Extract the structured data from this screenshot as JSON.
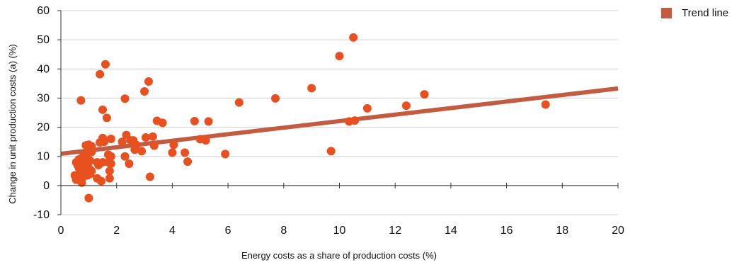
{
  "chart_data": {
    "type": "scatter",
    "title": "",
    "xlabel": "Energy costs as a share of production costs (%)",
    "ylabel": "Change in unit production costs (a) (%)",
    "xlim": [
      0,
      20
    ],
    "ylim": [
      -10,
      60
    ],
    "xticks": [
      0,
      2,
      4,
      6,
      8,
      10,
      12,
      14,
      16,
      18,
      20
    ],
    "yticks": [
      -10,
      0,
      10,
      20,
      30,
      40,
      50,
      60
    ],
    "grid": "horizontal",
    "legend_position": "top-right",
    "colors": {
      "points": "#e8501f",
      "trend": "#c25b3f",
      "grid": "#d0d0d0",
      "axis": "#333333"
    },
    "trend_line": {
      "name": "Trend line",
      "x": [
        0,
        20
      ],
      "y": [
        10.9,
        33.3
      ]
    },
    "points": [
      [
        0.5,
        3.5
      ],
      [
        0.55,
        8.0
      ],
      [
        0.55,
        2.0
      ],
      [
        0.6,
        7.0
      ],
      [
        0.65,
        9.0
      ],
      [
        0.65,
        6.0
      ],
      [
        0.7,
        4.5
      ],
      [
        0.7,
        8.5
      ],
      [
        0.72,
        29.2
      ],
      [
        0.75,
        1.0
      ],
      [
        0.75,
        6.5
      ],
      [
        0.8,
        10.0
      ],
      [
        0.8,
        3.0
      ],
      [
        0.85,
        7.5
      ],
      [
        0.9,
        13.8
      ],
      [
        0.9,
        5.0
      ],
      [
        0.95,
        9.5
      ],
      [
        0.95,
        3.5
      ],
      [
        1.0,
        12.0
      ],
      [
        1.0,
        14.0
      ],
      [
        1.0,
        6.0
      ],
      [
        1.05,
        8.5
      ],
      [
        1.05,
        4.0
      ],
      [
        1.0,
        -4.3
      ],
      [
        1.1,
        13.5
      ],
      [
        1.1,
        11.5
      ],
      [
        1.1,
        5.0
      ],
      [
        1.3,
        8.0
      ],
      [
        1.3,
        2.5
      ],
      [
        1.35,
        7.0
      ],
      [
        1.4,
        38.2
      ],
      [
        1.4,
        14.8
      ],
      [
        1.45,
        1.5
      ],
      [
        1.5,
        26.0
      ],
      [
        1.5,
        16.3
      ],
      [
        1.5,
        8.0
      ],
      [
        1.55,
        15.0
      ],
      [
        1.6,
        41.6
      ],
      [
        1.65,
        23.2
      ],
      [
        1.7,
        10.6
      ],
      [
        1.7,
        8.0
      ],
      [
        1.75,
        5.0
      ],
      [
        1.75,
        2.5
      ],
      [
        1.8,
        16.0
      ],
      [
        1.8,
        10.0
      ],
      [
        1.8,
        7.5
      ],
      [
        2.2,
        15.0
      ],
      [
        2.3,
        29.8
      ],
      [
        2.3,
        10.0
      ],
      [
        2.35,
        17.3
      ],
      [
        2.45,
        7.5
      ],
      [
        2.5,
        15.5
      ],
      [
        2.6,
        15.5
      ],
      [
        2.65,
        12.3
      ],
      [
        2.7,
        14.0
      ],
      [
        2.9,
        11.8
      ],
      [
        3.0,
        32.3
      ],
      [
        3.05,
        16.5
      ],
      [
        3.15,
        35.7
      ],
      [
        3.2,
        3.0
      ],
      [
        3.3,
        16.8
      ],
      [
        3.35,
        13.7
      ],
      [
        3.45,
        22.2
      ],
      [
        3.65,
        21.5
      ],
      [
        4.0,
        11.3
      ],
      [
        4.05,
        14.0
      ],
      [
        4.45,
        11.3
      ],
      [
        4.55,
        8.2
      ],
      [
        4.8,
        22.1
      ],
      [
        5.0,
        15.9
      ],
      [
        5.2,
        15.5
      ],
      [
        5.3,
        22.0
      ],
      [
        5.9,
        10.8
      ],
      [
        6.4,
        28.5
      ],
      [
        7.7,
        29.9
      ],
      [
        9.0,
        33.4
      ],
      [
        9.7,
        11.8
      ],
      [
        10.0,
        44.4
      ],
      [
        10.35,
        22.0
      ],
      [
        10.5,
        50.8
      ],
      [
        10.55,
        22.3
      ],
      [
        11.0,
        26.5
      ],
      [
        12.4,
        27.4
      ],
      [
        13.05,
        31.3
      ],
      [
        17.4,
        27.8
      ]
    ]
  },
  "legend": {
    "label": "Trend line",
    "color": "#c25b3f"
  }
}
